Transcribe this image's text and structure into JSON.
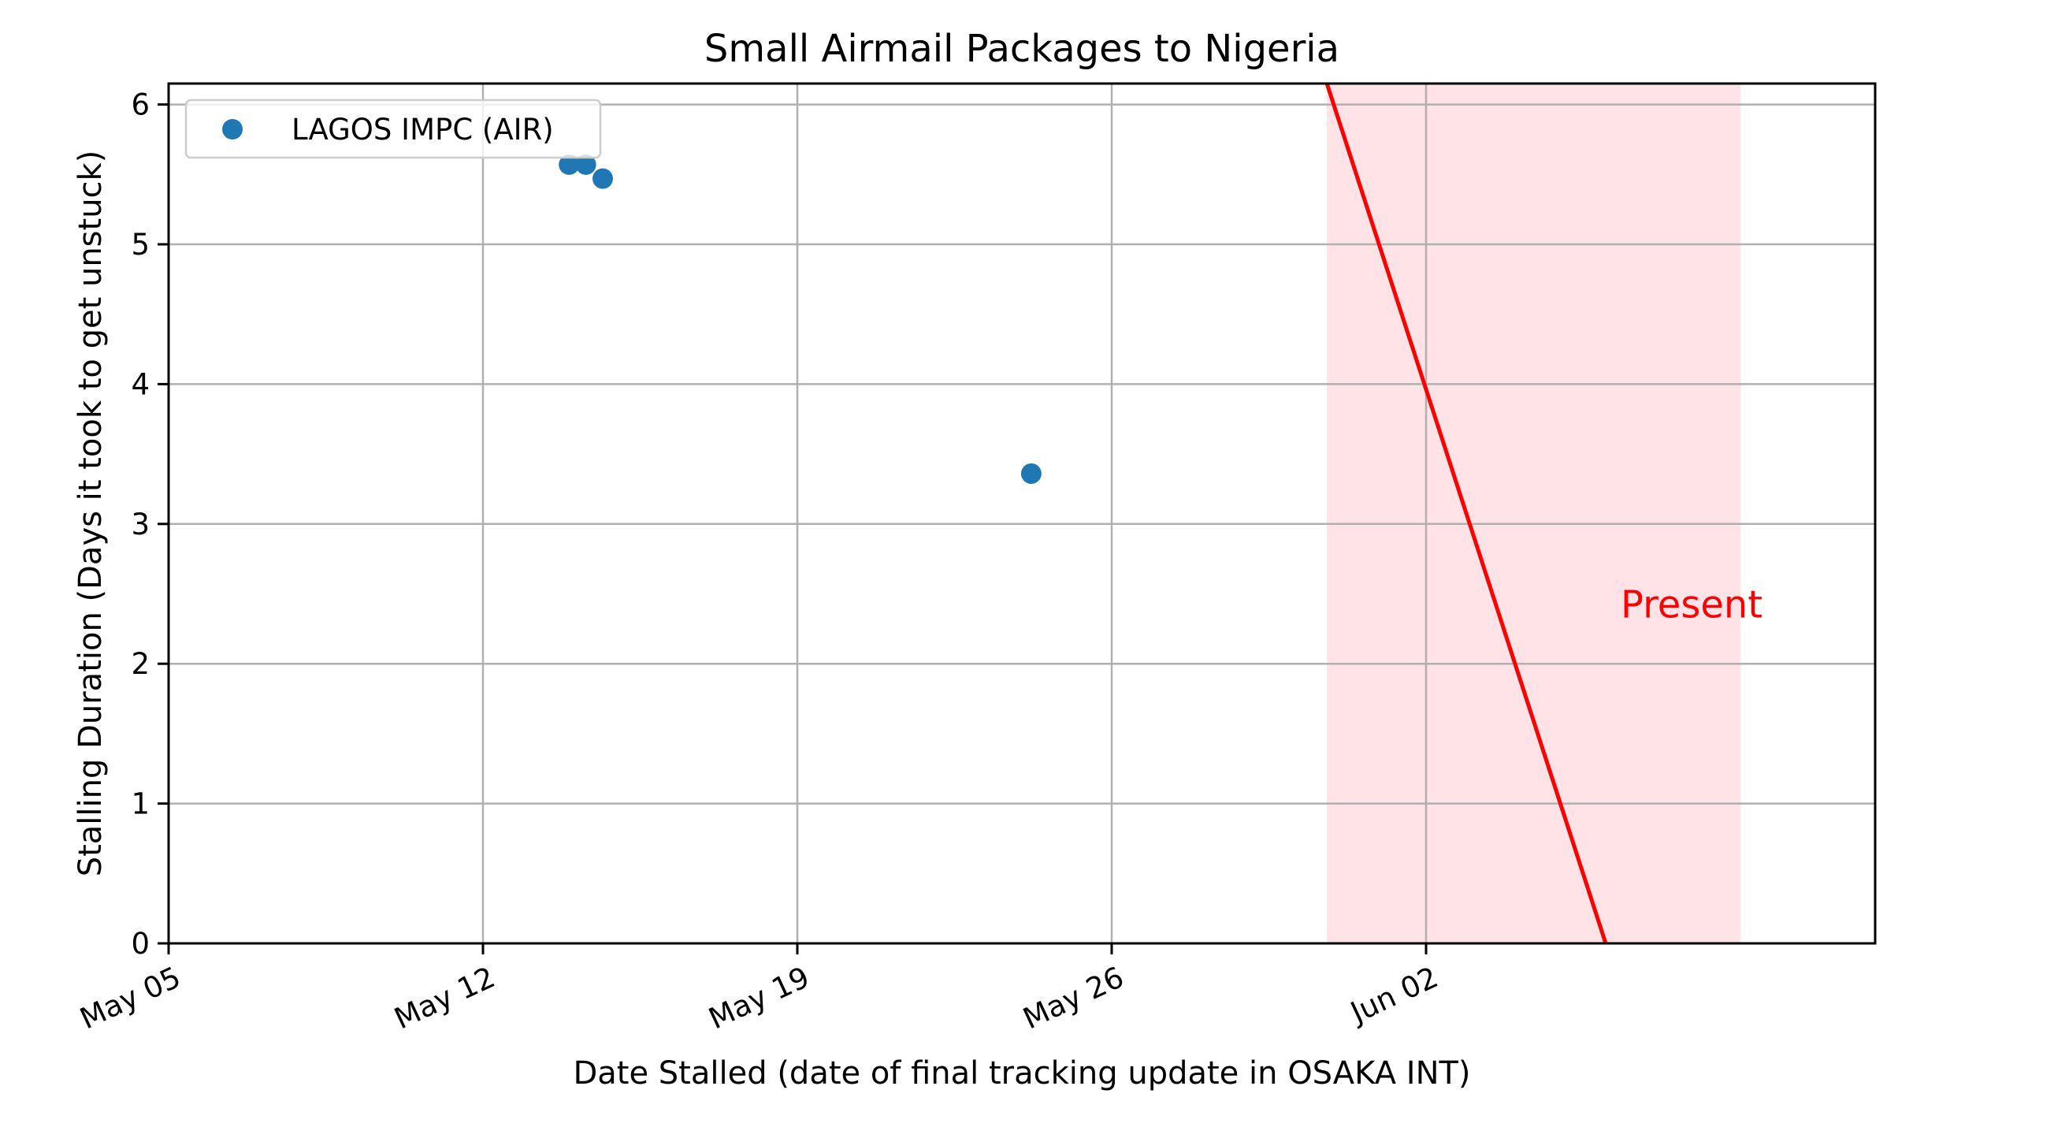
{
  "chart_data": {
    "type": "scatter",
    "title": "Small Airmail Packages to Nigeria",
    "xlabel": "Date Stalled (date of final tracking update in OSAKA INT)",
    "ylabel": "Stalling Duration (Days it took to get unstuck)",
    "x_axis_type": "date",
    "xlim": [
      "2025-05-05",
      "2025-06-12"
    ],
    "ylim": [
      0,
      6.15
    ],
    "x_ticks": [
      {
        "date": "2025-05-05",
        "label": "May 05"
      },
      {
        "date": "2025-05-12",
        "label": "May 12"
      },
      {
        "date": "2025-05-19",
        "label": "May 19"
      },
      {
        "date": "2025-05-26",
        "label": "May 26"
      },
      {
        "date": "2025-06-02",
        "label": "Jun 02"
      }
    ],
    "y_ticks": [
      0,
      1,
      2,
      3,
      4,
      5,
      6
    ],
    "grid": true,
    "legend_position": "top-left",
    "series": [
      {
        "name": "LAGOS IMPC (AIR)",
        "color": "#1f77b4",
        "points": [
          {
            "x": "2025-05-13T22:00",
            "y": 5.57
          },
          {
            "x": "2025-05-14T07:00",
            "y": 5.57
          },
          {
            "x": "2025-05-14T16:00",
            "y": 5.47
          },
          {
            "x": "2025-05-24T05:00",
            "y": 3.36
          }
        ]
      }
    ],
    "present_line": {
      "label": "Present",
      "color": "#ff0000",
      "points": [
        {
          "x": "2025-05-30T19:00",
          "y": 6.15
        },
        {
          "x": "2025-06-06T00:00",
          "y": 0
        }
      ]
    },
    "present_region": {
      "color": "#ffc0c8",
      "x_start": "2025-05-30T19:00",
      "x_end": "2025-06-09T00:00"
    },
    "present_label_position": {
      "x": "2025-06-06T08:00",
      "y": 2.33
    }
  }
}
